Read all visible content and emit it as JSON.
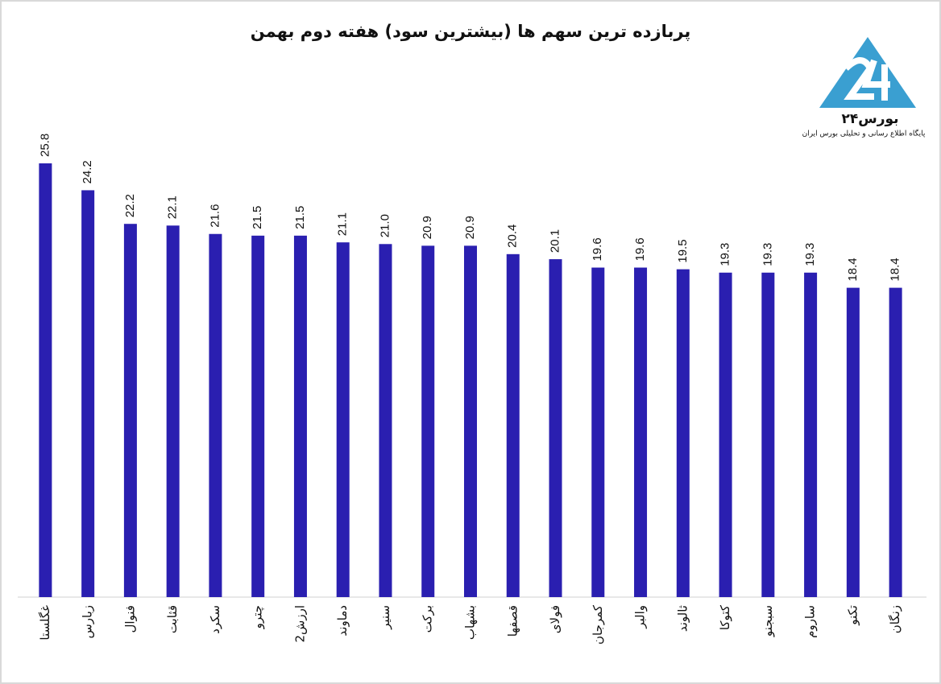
{
  "chart_data": {
    "type": "bar",
    "title": "پربازده ترین سهم ها (بیشترین سود) هفته دوم بهمن",
    "categories": [
      "غگلستا",
      "زبارس",
      "فنوال",
      "قثابت",
      "سکرد",
      "چترو",
      "ارزش2",
      "دماوند",
      "سنیر",
      "برکت",
      "بشهاب",
      "قصفها",
      "فولای",
      "کمرجان",
      "والبر",
      "ثالوند",
      "کتوکا",
      "سبجنو",
      "ساروم",
      "تکنو",
      "زنگان"
    ],
    "values": [
      25.8,
      24.2,
      22.2,
      22.1,
      21.6,
      21.5,
      21.5,
      21.1,
      21.0,
      20.9,
      20.9,
      20.4,
      20.1,
      19.6,
      19.6,
      19.5,
      19.3,
      19.3,
      19.3,
      18.4,
      18.4
    ],
    "value_labels": [
      "25.8",
      "24.2",
      "22.2",
      "22.1",
      "21.6",
      "21.5",
      "21.5",
      "21.1",
      "21.0",
      "20.9",
      "20.9",
      "20.4",
      "20.1",
      "19.6",
      "19.6",
      "19.5",
      "19.3",
      "19.3",
      "19.3",
      "18.4",
      "18.4"
    ],
    "color": "#2a1fb0"
  },
  "logo": {
    "name": "بورس۲۴",
    "tagline": "پایگاه اطلاع رسانی و تحلیلی بورس ایران"
  }
}
